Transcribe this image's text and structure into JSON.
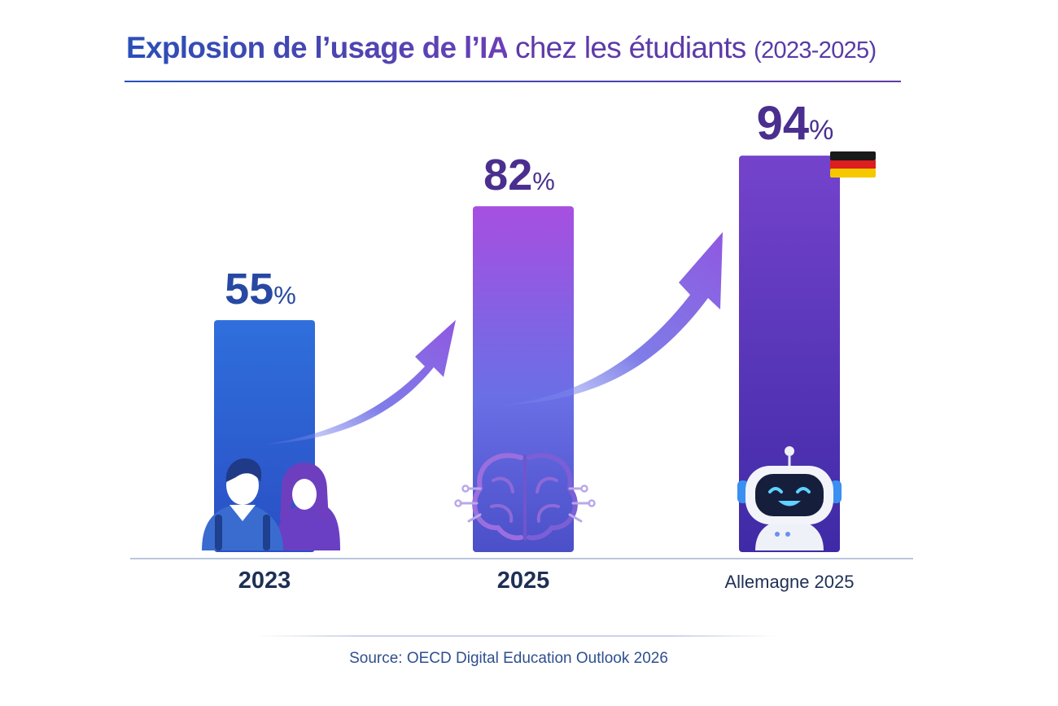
{
  "title": {
    "main": "Explosion de l’usage de l’IA",
    "rest": "chez les étudiants",
    "years": "(2023-2025)"
  },
  "source": "Source: OECD Digital Education Outlook 2026",
  "icons": [
    "students-icon",
    "brain-circuit-icon",
    "robot-icon",
    "german-flag-icon",
    "growth-arrow-icon"
  ],
  "colors": {
    "bar_2023": "#2e62d6",
    "bar_2025": "#8a57e0",
    "bar_germany": "#5d32b8",
    "label_2023": "#2749a3",
    "label_purple": "#4a2f8f"
  },
  "chart_data": {
    "type": "bar",
    "categories": [
      "2023",
      "2025",
      "Allemagne 2025"
    ],
    "values": [
      55,
      82,
      94
    ],
    "value_labels": [
      "55",
      "82",
      "94"
    ],
    "unit": "%",
    "title": "Explosion de l’usage de l’IA chez les étudiants (2023-2025)",
    "ylim": [
      0,
      100
    ],
    "grid": false,
    "legend": "none",
    "annotations": [
      "flag: Germany"
    ]
  }
}
